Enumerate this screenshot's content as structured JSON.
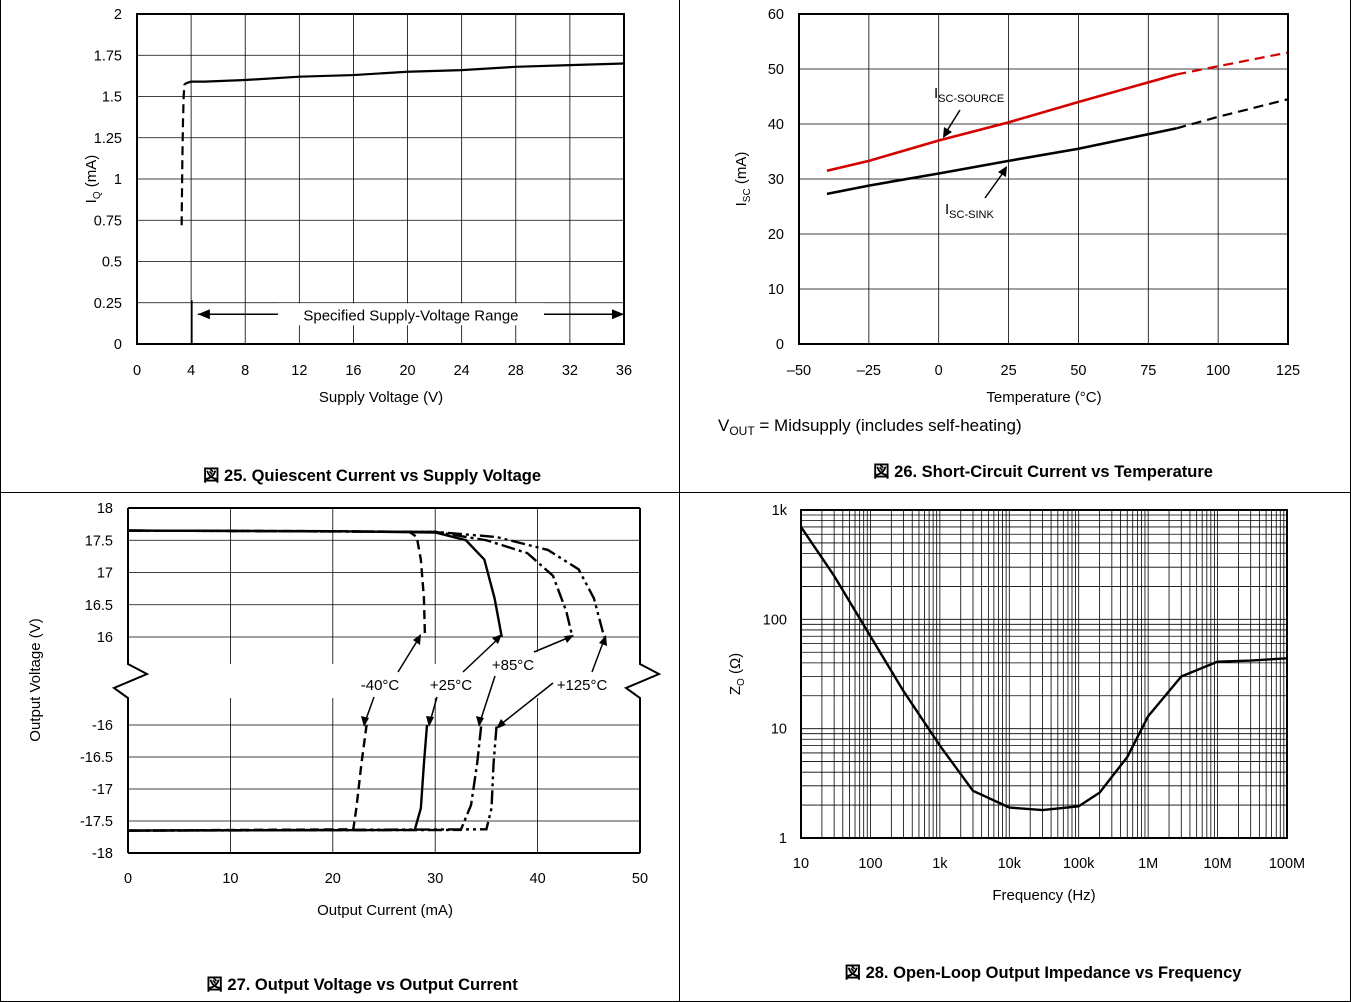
{
  "charts": [
    {
      "caption": "図 25.  Quiescent Current vs Supply Voltage",
      "chart_data": {
        "type": "line",
        "title": "",
        "xlabel": "Supply Voltage (V)",
        "ylabel": "I_Q (mA)",
        "ylabel_main": "I",
        "ylabel_sub": "Q",
        "ylabel_rest": " (mA)",
        "xlim": [
          0,
          36
        ],
        "ylim": [
          0,
          2
        ],
        "xticks": [
          0,
          4,
          8,
          12,
          16,
          20,
          24,
          28,
          32,
          36
        ],
        "yticks": [
          0,
          0.25,
          0.5,
          0.75,
          1,
          1.25,
          1.5,
          1.75,
          2
        ],
        "xtick_labels": [
          "0",
          "4",
          "8",
          "12",
          "16",
          "20",
          "24",
          "28",
          "32",
          "36"
        ],
        "ytick_labels": [
          "0",
          "0.25",
          "0.5",
          "0.75",
          "1",
          "1.25",
          "1.5",
          "1.75",
          "2"
        ],
        "grid": true,
        "series": [
          {
            "style": "dashed",
            "x": [
              3.3,
              3.35,
              3.4,
              3.45,
              3.5,
              3.6
            ],
            "y": [
              0.72,
              1.1,
              1.35,
              1.5,
              1.57,
              1.58
            ]
          },
          {
            "style": "solid",
            "x": [
              3.6,
              4,
              5,
              8,
              12,
              16,
              20,
              24,
              28,
              32,
              36
            ],
            "y": [
              1.58,
              1.59,
              1.59,
              1.6,
              1.62,
              1.63,
              1.65,
              1.66,
              1.68,
              1.69,
              1.7
            ]
          }
        ],
        "annotation": {
          "text": "Specified Supply-Voltage Range",
          "x_from": 4.5,
          "x_to": 36,
          "y": 0.18
        }
      }
    },
    {
      "caption": "図 26.  Short-Circuit Current vs Temperature",
      "note_main": "V",
      "note_sub": "OUT",
      "note_rest": " = Midsupply (includes self-heating)",
      "chart_data": {
        "type": "line",
        "title": "",
        "xlabel": "Temperature (°C)",
        "ylabel": "I_SC (mA)",
        "ylabel_main": "I",
        "ylabel_sub": "SC",
        "ylabel_rest": " (mA)",
        "xlim": [
          -50,
          125
        ],
        "ylim": [
          0,
          60
        ],
        "xticks": [
          -50,
          -25,
          0,
          25,
          50,
          75,
          100,
          125
        ],
        "yticks": [
          0,
          10,
          20,
          30,
          40,
          50,
          60
        ],
        "xtick_labels": [
          "–50",
          "–25",
          "0",
          "25",
          "50",
          "75",
          "100",
          "125"
        ],
        "ytick_labels": [
          "0",
          "10",
          "20",
          "30",
          "40",
          "50",
          "60"
        ],
        "grid": true,
        "series": [
          {
            "name": "I_SC-SOURCE",
            "label_main": "I",
            "label_sub": "SC-SOURCE",
            "color": "#d40000",
            "solid_x": [
              -40,
              -25,
              0,
              25,
              50,
              85
            ],
            "solid_y": [
              31.5,
              33.3,
              37,
              40.3,
              44,
              49
            ],
            "dashed_x": [
              85,
              100,
              125
            ],
            "dashed_y": [
              49,
              50.5,
              53
            ]
          },
          {
            "name": "I_SC-SINK",
            "label_main": "I",
            "label_sub": "SC-SINK",
            "color": "#000000",
            "solid_x": [
              -40,
              -25,
              0,
              25,
              50,
              85
            ],
            "solid_y": [
              27.3,
              28.8,
              31,
              33.3,
              35.5,
              39.2
            ],
            "dashed_x": [
              85,
              100,
              125
            ],
            "dashed_y": [
              39.2,
              41.3,
              44.5
            ]
          }
        ]
      }
    },
    {
      "caption": "図 27. Output Voltage vs Output Current",
      "chart_data": {
        "type": "line",
        "title": "",
        "xlabel": "Output Current (mA)",
        "ylabel": "Output Voltage (V)",
        "xlim": [
          0,
          50
        ],
        "xticks": [
          0,
          10,
          20,
          30,
          40,
          50
        ],
        "xtick_labels": [
          "0",
          "10",
          "20",
          "30",
          "40",
          "50"
        ],
        "ytick_labels_upper": [
          "18",
          "17.5",
          "17",
          "16.5",
          "16"
        ],
        "ytick_values_upper": [
          18,
          17.5,
          17,
          16.5,
          16
        ],
        "ytick_labels_lower": [
          "-16",
          "-16.5",
          "-17",
          "-17.5",
          "-18"
        ],
        "ytick_values_lower": [
          -16,
          -16.5,
          -17,
          -17.5,
          -18
        ],
        "axis_break": true,
        "grid": true,
        "series": [
          {
            "name": "-40°C",
            "style": "dashed",
            "upper_x": [
              0,
              20,
              27.5,
              28.2,
              28.6,
              28.9,
              29.0
            ],
            "upper_y": [
              17.65,
              17.64,
              17.63,
              17.55,
              17.2,
              16.6,
              16.0
            ],
            "lower_x": [
              0,
              22,
              22.3,
              22.8,
              23.3
            ],
            "lower_y": [
              -17.65,
              -17.63,
              -17.3,
              -16.6,
              -16.0
            ]
          },
          {
            "name": "+25°C",
            "style": "solid",
            "upper_x": [
              0,
              20,
              30,
              33,
              34.8,
              35.8,
              36.5
            ],
            "upper_y": [
              17.65,
              17.64,
              17.62,
              17.5,
              17.2,
              16.6,
              16.0
            ],
            "lower_x": [
              0,
              28,
              28.6,
              28.9,
              29.2
            ],
            "lower_y": [
              -17.65,
              -17.64,
              -17.3,
              -16.6,
              -16.0
            ]
          },
          {
            "name": "+85°C",
            "style": "dashdot",
            "upper_x": [
              0,
              30,
              35,
              39,
              41.5,
              42.8,
              43.4
            ],
            "upper_y": [
              17.65,
              17.63,
              17.5,
              17.3,
              16.95,
              16.4,
              16.0
            ],
            "lower_x": [
              0,
              32.5,
              33.5,
              34.1,
              34.5
            ],
            "lower_y": [
              -17.65,
              -17.64,
              -17.25,
              -16.6,
              -16.0
            ]
          },
          {
            "name": "+125°C",
            "style": "dashdotdot",
            "upper_x": [
              0,
              30,
              36,
              41,
              44,
              45.5,
              46.5
            ],
            "upper_y": [
              17.65,
              17.63,
              17.55,
              17.35,
              17.05,
              16.6,
              16.0
            ],
            "lower_x": [
              0,
              35,
              35.5,
              35.7,
              36.0
            ],
            "lower_y": [
              -17.65,
              -17.63,
              -17.3,
              -16.6,
              -16.0
            ]
          }
        ]
      }
    },
    {
      "caption": "図 28.  Open-Loop Output Impedance vs Frequency",
      "chart_data": {
        "type": "line",
        "title": "",
        "xlabel": "Frequency (Hz)",
        "ylabel": "Z_O (Ω)",
        "ylabel_main": "Z",
        "ylabel_sub": "O",
        "ylabel_rest": " (Ω)",
        "xscale": "log",
        "yscale": "log",
        "xlim": [
          10,
          100000000
        ],
        "ylim": [
          1,
          1000
        ],
        "xticks": [
          10,
          100,
          1000,
          10000,
          100000,
          1000000,
          10000000,
          100000000
        ],
        "xtick_labels": [
          "10",
          "100",
          "1k",
          "10k",
          "100k",
          "1M",
          "10M",
          "100M"
        ],
        "yticks": [
          1,
          10,
          100,
          1000
        ],
        "ytick_labels": [
          "1",
          "10",
          "100",
          "1k"
        ],
        "grid": true,
        "series": [
          {
            "style": "solid",
            "x": [
              10,
              30,
              100,
              300,
              1000,
              3000,
              10000,
              30000,
              100000,
              200000,
              500000,
              1000000,
              3000000,
              10000000,
              30000000,
              100000000
            ],
            "y": [
              700,
              250,
              70,
              22,
              7,
              2.7,
              1.9,
              1.8,
              1.95,
              2.6,
              5.5,
              13,
              30,
              41,
              42,
              44
            ]
          }
        ]
      }
    }
  ]
}
